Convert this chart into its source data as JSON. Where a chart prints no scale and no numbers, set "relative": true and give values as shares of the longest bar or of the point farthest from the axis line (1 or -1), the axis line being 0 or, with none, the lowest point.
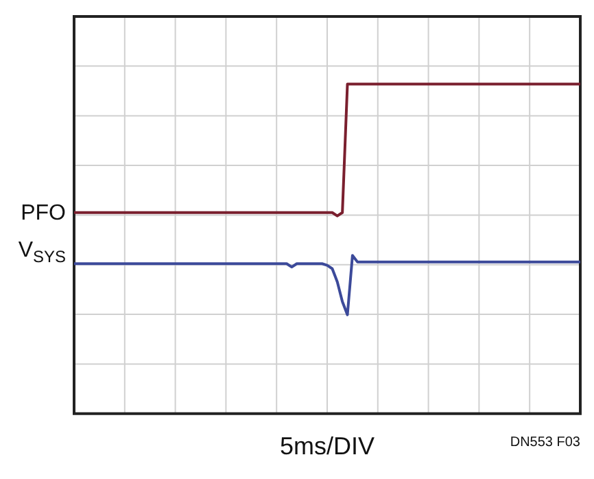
{
  "chart_data": {
    "type": "line",
    "relative": true,
    "xlabel": "5ms/DIV",
    "annotations": [
      "DN553 F03"
    ],
    "grid": true,
    "legend": false,
    "marker": "none",
    "line_style": "solid",
    "categories": [
      null,
      null,
      null,
      null,
      null,
      null,
      null,
      null,
      null,
      null,
      null,
      null,
      null,
      null,
      null,
      null,
      null,
      null,
      null,
      null,
      null,
      null,
      null,
      null,
      null,
      null,
      null,
      null,
      null,
      null,
      null,
      null,
      null,
      null,
      null,
      null,
      null,
      null,
      null,
      null,
      null,
      null,
      null,
      null,
      null,
      null,
      null,
      null,
      null,
      null,
      null,
      null,
      null,
      null,
      null,
      null,
      null,
      null,
      null,
      null,
      null,
      null,
      null,
      null,
      null,
      null,
      null,
      null,
      null,
      null,
      null,
      null,
      null,
      null,
      null,
      null,
      null,
      null,
      null,
      null,
      null,
      null,
      null,
      null,
      null,
      null,
      null,
      null,
      null,
      null,
      null,
      null,
      null,
      null,
      null,
      null,
      null,
      null,
      null,
      null,
      null
    ],
    "series": [
      {
        "name": "PFO",
        "color": "#7a1f2e",
        "values": [
          0.61,
          0.61,
          0.61,
          0.61,
          0.61,
          0.61,
          0.61,
          0.61,
          0.61,
          0.61,
          0.61,
          0.61,
          0.61,
          0.61,
          0.61,
          0.61,
          0.61,
          0.61,
          0.61,
          0.61,
          0.61,
          0.61,
          0.61,
          0.61,
          0.61,
          0.61,
          0.61,
          0.61,
          0.61,
          0.61,
          0.61,
          0.61,
          0.61,
          0.61,
          0.61,
          0.61,
          0.61,
          0.61,
          0.61,
          0.61,
          0.61,
          0.61,
          0.61,
          0.61,
          0.61,
          0.61,
          0.61,
          0.61,
          0.61,
          0.61,
          0.61,
          0.61,
          0.6,
          0.61,
          1,
          1,
          1,
          1,
          1,
          1,
          1,
          1,
          1,
          1,
          1,
          1,
          1,
          1,
          1,
          1,
          1,
          1,
          1,
          1,
          1,
          1,
          1,
          1,
          1,
          1,
          1,
          1,
          1,
          1,
          1,
          1,
          1,
          1,
          1,
          1,
          1,
          1,
          1,
          1,
          1,
          1,
          1,
          1,
          1,
          1,
          1
        ]
      },
      {
        "name": "V$_{SYS}$",
        "color": "#3c4a9a",
        "values": [
          0.455,
          0.455,
          0.455,
          0.455,
          0.455,
          0.455,
          0.455,
          0.455,
          0.455,
          0.455,
          0.455,
          0.455,
          0.455,
          0.455,
          0.455,
          0.455,
          0.455,
          0.455,
          0.455,
          0.455,
          0.455,
          0.455,
          0.455,
          0.455,
          0.455,
          0.455,
          0.455,
          0.455,
          0.455,
          0.455,
          0.455,
          0.455,
          0.455,
          0.455,
          0.455,
          0.455,
          0.455,
          0.455,
          0.455,
          0.455,
          0.455,
          0.455,
          0.455,
          0.445,
          0.455,
          0.455,
          0.455,
          0.455,
          0.455,
          0.455,
          0.45,
          0.44,
          0.4,
          0.34,
          0.3,
          0.48,
          0.46,
          0.46,
          0.46,
          0.46,
          0.46,
          0.46,
          0.46,
          0.46,
          0.46,
          0.46,
          0.46,
          0.46,
          0.46,
          0.46,
          0.46,
          0.46,
          0.46,
          0.46,
          0.46,
          0.46,
          0.46,
          0.46,
          0.46,
          0.46,
          0.46,
          0.46,
          0.46,
          0.46,
          0.46,
          0.46,
          0.46,
          0.46,
          0.46,
          0.46,
          0.46,
          0.46,
          0.46,
          0.46,
          0.46,
          0.46,
          0.46,
          0.46,
          0.46,
          0.46,
          0.46
        ]
      }
    ]
  }
}
